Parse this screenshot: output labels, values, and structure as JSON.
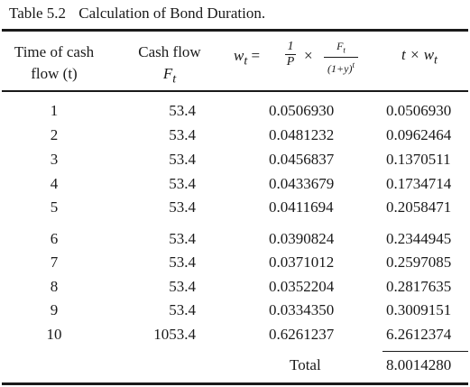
{
  "caption": {
    "number": "Table 5.2",
    "title": "Calculation of Bond Duration."
  },
  "headers": {
    "col1_line1": "Time of cash",
    "col1_line2": "flow (t)",
    "col2_line1": "Cash flow",
    "col2_line2": "F",
    "col2_sub": "t",
    "col3": {
      "lhs": "w",
      "lhs_sub": "t",
      "eq": " = ",
      "frac1_num": "1",
      "frac1_den": "P",
      "times": " × ",
      "frac2_num": "F",
      "frac2_num_sub": "t",
      "frac2_den": "(1+y)",
      "frac2_den_sup": "t"
    },
    "col4": "t × w",
    "col4_sub": "t"
  },
  "rows": [
    {
      "t": "1",
      "cf": "53.4",
      "w": "0.0506930",
      "tw": "0.0506930"
    },
    {
      "t": "2",
      "cf": "53.4",
      "w": "0.0481232",
      "tw": "0.0962464"
    },
    {
      "t": "3",
      "cf": "53.4",
      "w": "0.0456837",
      "tw": "0.1370511"
    },
    {
      "t": "4",
      "cf": "53.4",
      "w": "0.0433679",
      "tw": "0.1734714"
    },
    {
      "t": "5",
      "cf": "53.4",
      "w": "0.0411694",
      "tw": "0.2058471"
    },
    {
      "t": "6",
      "cf": "53.4",
      "w": "0.0390824",
      "tw": "0.2344945"
    },
    {
      "t": "7",
      "cf": "53.4",
      "w": "0.0371012",
      "tw": "0.2597085"
    },
    {
      "t": "8",
      "cf": "53.4",
      "w": "0.0352204",
      "tw": "0.2817635"
    },
    {
      "t": "9",
      "cf": "53.4",
      "w": "0.0334350",
      "tw": "0.3009151"
    },
    {
      "t": "10",
      "cf": "1053.4",
      "w": "0.6261237",
      "tw": "6.2612374"
    }
  ],
  "total": {
    "label": "Total",
    "value": "8.0014280"
  }
}
